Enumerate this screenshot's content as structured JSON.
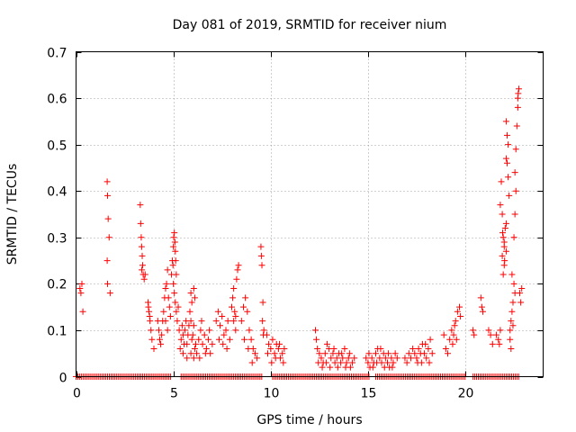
{
  "chart_data": {
    "type": "scatter",
    "title": "Day 081 of 2019, SRMTID for receiver nium",
    "xlabel": "GPS time / hours",
    "ylabel": "SRMTID / TECUs",
    "xlim": [
      0,
      24
    ],
    "ylim": [
      0,
      0.7
    ],
    "xticks": [
      0,
      5,
      10,
      15,
      20
    ],
    "yticks": [
      0,
      0.1,
      0.2,
      0.3,
      0.4,
      0.5,
      0.6,
      0.7
    ],
    "xtick_labels": [
      "0",
      "5",
      "10",
      "15",
      "20"
    ],
    "ytick_labels": [
      "0",
      "0.1",
      "0.2",
      "0.3",
      "0.4",
      "0.5",
      "0.6",
      "0.7"
    ],
    "grid": true,
    "marker": "+",
    "marker_color": "#ff0000",
    "series": [
      {
        "name": "SRMTID",
        "points": [
          [
            0.2,
            0.19
          ],
          [
            0.25,
            0.18
          ],
          [
            0.3,
            0.2
          ],
          [
            0.35,
            0.14
          ],
          [
            1.6,
            0.42
          ],
          [
            1.62,
            0.39
          ],
          [
            1.65,
            0.34
          ],
          [
            1.7,
            0.3
          ],
          [
            1.6,
            0.25
          ],
          [
            1.75,
            0.18
          ],
          [
            1.62,
            0.2
          ],
          [
            3.3,
            0.37
          ],
          [
            3.32,
            0.33
          ],
          [
            3.35,
            0.3
          ],
          [
            3.37,
            0.28
          ],
          [
            3.4,
            0.26
          ],
          [
            3.42,
            0.24
          ],
          [
            3.45,
            0.22
          ],
          [
            3.5,
            0.21
          ],
          [
            3.55,
            0.22
          ],
          [
            3.38,
            0.23
          ],
          [
            3.7,
            0.16
          ],
          [
            3.75,
            0.14
          ],
          [
            3.8,
            0.12
          ],
          [
            3.85,
            0.1
          ],
          [
            3.78,
            0.13
          ],
          [
            3.72,
            0.15
          ],
          [
            3.9,
            0.08
          ],
          [
            4.0,
            0.06
          ],
          [
            4.2,
            0.12
          ],
          [
            4.25,
            0.1
          ],
          [
            4.3,
            0.08
          ],
          [
            4.35,
            0.07
          ],
          [
            4.4,
            0.09
          ],
          [
            4.45,
            0.12
          ],
          [
            4.5,
            0.14
          ],
          [
            4.55,
            0.17
          ],
          [
            4.6,
            0.19
          ],
          [
            4.65,
            0.2
          ],
          [
            4.7,
            0.23
          ],
          [
            4.75,
            0.17
          ],
          [
            4.8,
            0.15
          ],
          [
            4.85,
            0.13
          ],
          [
            4.7,
            0.1
          ],
          [
            4.6,
            0.12
          ],
          [
            4.9,
            0.22
          ],
          [
            4.95,
            0.25
          ],
          [
            5.0,
            0.28
          ],
          [
            5.02,
            0.3
          ],
          [
            5.05,
            0.31
          ],
          [
            5.08,
            0.29
          ],
          [
            5.1,
            0.27
          ],
          [
            5.12,
            0.25
          ],
          [
            5.15,
            0.22
          ],
          [
            5.0,
            0.2
          ],
          [
            5.05,
            0.18
          ],
          [
            5.1,
            0.16
          ],
          [
            5.15,
            0.14
          ],
          [
            5.2,
            0.12
          ],
          [
            5.25,
            0.15
          ],
          [
            4.98,
            0.24
          ],
          [
            5.3,
            0.1
          ],
          [
            5.4,
            0.08
          ],
          [
            5.5,
            0.09
          ],
          [
            5.6,
            0.1
          ],
          [
            5.7,
            0.07
          ],
          [
            5.8,
            0.11
          ],
          [
            5.9,
            0.12
          ],
          [
            6.0,
            0.09
          ],
          [
            6.1,
            0.06
          ],
          [
            6.2,
            0.05
          ],
          [
            5.45,
            0.11
          ],
          [
            5.55,
            0.07
          ],
          [
            5.65,
            0.12
          ],
          [
            5.75,
            0.09
          ],
          [
            5.85,
            0.14
          ],
          [
            5.95,
            0.08
          ],
          [
            6.05,
            0.11
          ],
          [
            6.15,
            0.07
          ],
          [
            5.35,
            0.06
          ],
          [
            5.5,
            0.05
          ],
          [
            5.7,
            0.04
          ],
          [
            5.9,
            0.05
          ],
          [
            6.05,
            0.04
          ],
          [
            6.3,
            0.08
          ],
          [
            6.4,
            0.1
          ],
          [
            6.5,
            0.07
          ],
          [
            6.6,
            0.09
          ],
          [
            6.7,
            0.06
          ],
          [
            6.8,
            0.08
          ],
          [
            6.9,
            0.05
          ],
          [
            7.0,
            0.07
          ],
          [
            6.45,
            0.12
          ],
          [
            6.65,
            0.05
          ],
          [
            6.85,
            0.1
          ],
          [
            6.35,
            0.04
          ],
          [
            5.9,
            0.18
          ],
          [
            5.95,
            0.16
          ],
          [
            6.05,
            0.19
          ],
          [
            6.1,
            0.17
          ],
          [
            7.2,
            0.12
          ],
          [
            7.3,
            0.14
          ],
          [
            7.4,
            0.11
          ],
          [
            7.5,
            0.13
          ],
          [
            7.6,
            0.09
          ],
          [
            7.7,
            0.1
          ],
          [
            7.8,
            0.12
          ],
          [
            7.9,
            0.08
          ],
          [
            7.35,
            0.08
          ],
          [
            7.55,
            0.07
          ],
          [
            7.75,
            0.06
          ],
          [
            8.0,
            0.15
          ],
          [
            8.05,
            0.17
          ],
          [
            8.1,
            0.19
          ],
          [
            8.15,
            0.14
          ],
          [
            8.2,
            0.13
          ],
          [
            8.25,
            0.21
          ],
          [
            8.3,
            0.23
          ],
          [
            8.35,
            0.24
          ],
          [
            8.1,
            0.12
          ],
          [
            8.2,
            0.1
          ],
          [
            8.5,
            0.12
          ],
          [
            8.6,
            0.15
          ],
          [
            8.7,
            0.17
          ],
          [
            8.8,
            0.14
          ],
          [
            8.9,
            0.1
          ],
          [
            9.0,
            0.08
          ],
          [
            9.1,
            0.06
          ],
          [
            9.2,
            0.05
          ],
          [
            9.3,
            0.04
          ],
          [
            8.65,
            0.08
          ],
          [
            8.85,
            0.06
          ],
          [
            9.05,
            0.03
          ],
          [
            9.5,
            0.28
          ],
          [
            9.52,
            0.26
          ],
          [
            9.55,
            0.24
          ],
          [
            9.6,
            0.16
          ],
          [
            9.58,
            0.12
          ],
          [
            9.65,
            0.1
          ],
          [
            9.62,
            0.09
          ],
          [
            9.8,
            0.09
          ],
          [
            9.9,
            0.07
          ],
          [
            10.0,
            0.06
          ],
          [
            10.1,
            0.08
          ],
          [
            10.2,
            0.05
          ],
          [
            10.3,
            0.07
          ],
          [
            10.4,
            0.06
          ],
          [
            10.5,
            0.04
          ],
          [
            10.6,
            0.05
          ],
          [
            10.7,
            0.06
          ],
          [
            9.85,
            0.05
          ],
          [
            10.05,
            0.03
          ],
          [
            10.25,
            0.04
          ],
          [
            10.45,
            0.07
          ],
          [
            10.65,
            0.03
          ],
          [
            12.3,
            0.1
          ],
          [
            12.35,
            0.08
          ],
          [
            12.4,
            0.06
          ],
          [
            12.5,
            0.05
          ],
          [
            12.6,
            0.04
          ],
          [
            12.7,
            0.03
          ],
          [
            12.8,
            0.05
          ],
          [
            12.9,
            0.07
          ],
          [
            13.0,
            0.06
          ],
          [
            13.1,
            0.04
          ],
          [
            13.2,
            0.05
          ],
          [
            13.3,
            0.03
          ],
          [
            13.4,
            0.04
          ],
          [
            13.5,
            0.05
          ],
          [
            13.6,
            0.03
          ],
          [
            13.7,
            0.04
          ],
          [
            13.8,
            0.06
          ],
          [
            13.9,
            0.03
          ],
          [
            14.0,
            0.04
          ],
          [
            14.1,
            0.02
          ],
          [
            14.2,
            0.03
          ],
          [
            14.3,
            0.04
          ],
          [
            12.45,
            0.03
          ],
          [
            12.65,
            0.02
          ],
          [
            12.85,
            0.03
          ],
          [
            13.05,
            0.02
          ],
          [
            13.25,
            0.06
          ],
          [
            13.45,
            0.02
          ],
          [
            13.65,
            0.05
          ],
          [
            13.85,
            0.02
          ],
          [
            14.05,
            0.05
          ],
          [
            14.9,
            0.04
          ],
          [
            15.0,
            0.03
          ],
          [
            15.1,
            0.02
          ],
          [
            15.2,
            0.04
          ],
          [
            15.3,
            0.03
          ],
          [
            15.4,
            0.05
          ],
          [
            15.5,
            0.06
          ],
          [
            15.6,
            0.04
          ],
          [
            15.7,
            0.03
          ],
          [
            15.8,
            0.05
          ],
          [
            15.9,
            0.04
          ],
          [
            16.0,
            0.03
          ],
          [
            16.1,
            0.02
          ],
          [
            16.2,
            0.04
          ],
          [
            16.3,
            0.03
          ],
          [
            16.4,
            0.05
          ],
          [
            16.5,
            0.04
          ],
          [
            15.05,
            0.05
          ],
          [
            15.25,
            0.02
          ],
          [
            15.45,
            0.03
          ],
          [
            15.65,
            0.06
          ],
          [
            15.85,
            0.02
          ],
          [
            16.05,
            0.05
          ],
          [
            16.25,
            0.02
          ],
          [
            16.9,
            0.04
          ],
          [
            17.0,
            0.03
          ],
          [
            17.1,
            0.05
          ],
          [
            17.2,
            0.04
          ],
          [
            17.3,
            0.06
          ],
          [
            17.4,
            0.05
          ],
          [
            17.5,
            0.04
          ],
          [
            17.6,
            0.06
          ],
          [
            17.7,
            0.05
          ],
          [
            17.8,
            0.07
          ],
          [
            17.9,
            0.05
          ],
          [
            18.0,
            0.04
          ],
          [
            18.1,
            0.06
          ],
          [
            18.2,
            0.08
          ],
          [
            18.3,
            0.05
          ],
          [
            17.55,
            0.03
          ],
          [
            17.75,
            0.03
          ],
          [
            17.95,
            0.07
          ],
          [
            18.15,
            0.03
          ],
          [
            18.9,
            0.09
          ],
          [
            19.0,
            0.06
          ],
          [
            19.1,
            0.05
          ],
          [
            19.2,
            0.08
          ],
          [
            19.3,
            0.1
          ],
          [
            19.4,
            0.09
          ],
          [
            19.5,
            0.12
          ],
          [
            19.6,
            0.14
          ],
          [
            19.7,
            0.15
          ],
          [
            19.75,
            0.13
          ],
          [
            19.45,
            0.11
          ],
          [
            19.55,
            0.08
          ],
          [
            19.35,
            0.07
          ],
          [
            20.4,
            0.1
          ],
          [
            20.45,
            0.09
          ],
          [
            20.8,
            0.17
          ],
          [
            20.85,
            0.15
          ],
          [
            20.9,
            0.14
          ],
          [
            21.2,
            0.1
          ],
          [
            21.3,
            0.09
          ],
          [
            21.4,
            0.07
          ],
          [
            21.6,
            0.09
          ],
          [
            21.7,
            0.08
          ],
          [
            21.8,
            0.1
          ],
          [
            21.75,
            0.07
          ],
          [
            21.8,
            0.37
          ],
          [
            21.85,
            0.42
          ],
          [
            21.9,
            0.35
          ],
          [
            21.95,
            0.3
          ],
          [
            22.0,
            0.28
          ],
          [
            21.9,
            0.26
          ],
          [
            22.0,
            0.24
          ],
          [
            21.95,
            0.22
          ],
          [
            22.05,
            0.32
          ],
          [
            22.1,
            0.27
          ],
          [
            22.0,
            0.29
          ],
          [
            21.92,
            0.31
          ],
          [
            22.02,
            0.25
          ],
          [
            22.1,
            0.33
          ],
          [
            22.1,
            0.47
          ],
          [
            22.15,
            0.52
          ],
          [
            22.1,
            0.55
          ],
          [
            22.2,
            0.43
          ],
          [
            22.25,
            0.39
          ],
          [
            22.2,
            0.5
          ],
          [
            22.15,
            0.46
          ],
          [
            22.3,
            0.1
          ],
          [
            22.35,
            0.12
          ],
          [
            22.4,
            0.14
          ],
          [
            22.3,
            0.08
          ],
          [
            22.45,
            0.16
          ],
          [
            22.5,
            0.2
          ],
          [
            22.4,
            0.22
          ],
          [
            22.55,
            0.18
          ],
          [
            22.35,
            0.06
          ],
          [
            22.45,
            0.11
          ],
          [
            22.5,
            0.3
          ],
          [
            22.55,
            0.35
          ],
          [
            22.6,
            0.4
          ],
          [
            22.55,
            0.44
          ],
          [
            22.6,
            0.49
          ],
          [
            22.65,
            0.54
          ],
          [
            22.7,
            0.58
          ],
          [
            22.72,
            0.61
          ],
          [
            22.75,
            0.62
          ],
          [
            22.7,
            0.6
          ],
          [
            22.8,
            0.18
          ],
          [
            22.85,
            0.16
          ],
          [
            22.9,
            0.19
          ]
        ],
        "zero_segments": [
          [
            0,
            4.9
          ],
          [
            5.4,
            9.6
          ],
          [
            10.1,
            15.1
          ],
          [
            15.4,
            20.0
          ],
          [
            20.4,
            22.8
          ]
        ]
      }
    ]
  }
}
